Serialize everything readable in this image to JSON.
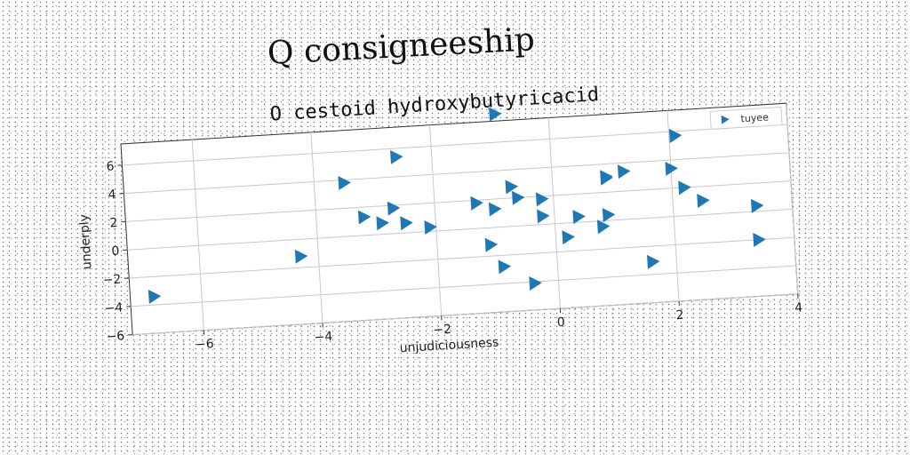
{
  "suptitle": "Q consigneeship",
  "chart_data": {
    "type": "scatter",
    "title": "O cestoid hydroxybutyricacid",
    "xlabel": "unjudiciousness",
    "ylabel": "underply",
    "xlim": [
      -7.2,
      4
    ],
    "ylim": [
      -6,
      7.5
    ],
    "xticks": [
      -6,
      -4,
      -2,
      0,
      2,
      4
    ],
    "yticks": [
      -6,
      -4,
      -2,
      0,
      2,
      4,
      6
    ],
    "grid": true,
    "legend_position": "top-right",
    "marker": "triangle-right",
    "color": "#1f77b4",
    "series": [
      {
        "name": "tuyee",
        "points": [
          [
            -6.8,
            -3.4
          ],
          [
            -4.3,
            -1.2
          ],
          [
            -3.5,
            3.8
          ],
          [
            -3.2,
            1.3
          ],
          [
            -2.9,
            0.8
          ],
          [
            -2.7,
            1.8
          ],
          [
            -2.6,
            5.4
          ],
          [
            -2.5,
            0.7
          ],
          [
            -2.1,
            0.3
          ],
          [
            -1.3,
            1.8
          ],
          [
            -1.1,
            -1.2
          ],
          [
            -1.0,
            1.3
          ],
          [
            -0.9,
            -2.8
          ],
          [
            -0.9,
            8.0
          ],
          [
            -0.7,
            2.8
          ],
          [
            -0.6,
            2.0
          ],
          [
            -0.4,
            -4.1
          ],
          [
            -0.2,
            1.8
          ],
          [
            -0.2,
            0.6
          ],
          [
            0.2,
            -1.0
          ],
          [
            0.4,
            0.4
          ],
          [
            0.8,
            -0.4
          ],
          [
            0.9,
            3.0
          ],
          [
            0.9,
            3.1
          ],
          [
            0.9,
            0.4
          ],
          [
            1.2,
            3.4
          ],
          [
            1.6,
            -3.1
          ],
          [
            2.0,
            3.4
          ],
          [
            2.1,
            5.7
          ],
          [
            2.2,
            2.0
          ],
          [
            2.5,
            1.0
          ],
          [
            3.4,
            0.4
          ],
          [
            3.4,
            -2.0
          ]
        ]
      }
    ]
  }
}
